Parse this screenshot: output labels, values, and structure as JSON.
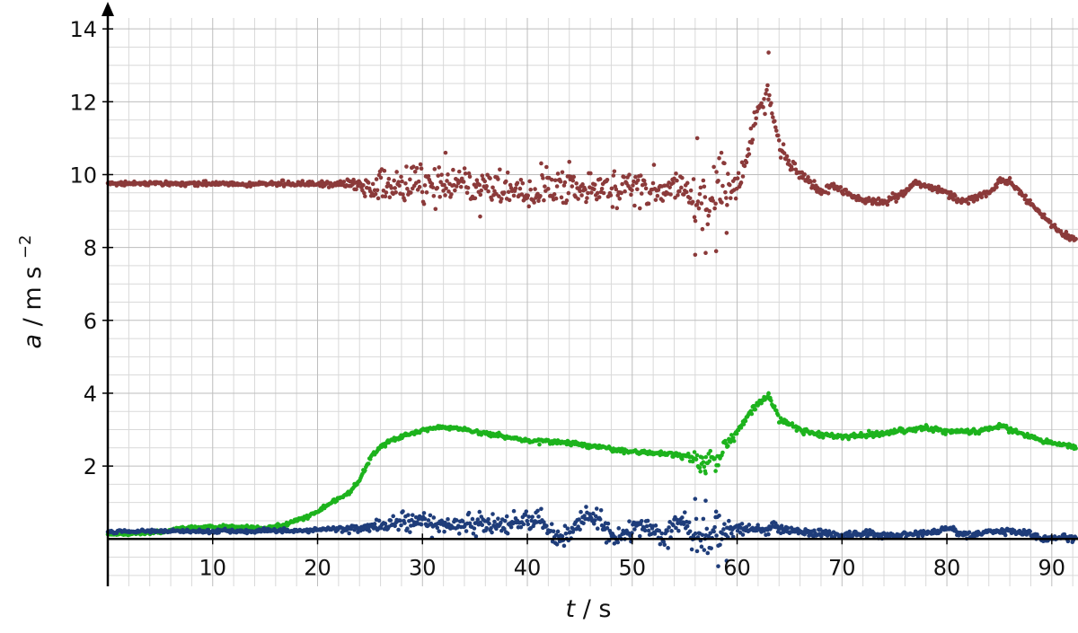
{
  "chart_data": {
    "type": "scatter",
    "title": "",
    "xlabel": {
      "symbol": "t",
      "unit": "s"
    },
    "ylabel": {
      "symbol": "a",
      "unit": "m s",
      "unit_exponent": "−2"
    },
    "xlim": [
      0,
      92.5
    ],
    "ylim": [
      -1.3,
      14.3
    ],
    "x_ticks": [
      10,
      20,
      30,
      40,
      50,
      60,
      70,
      80,
      90
    ],
    "y_ticks": [
      2,
      4,
      6,
      8,
      10,
      12,
      14
    ],
    "x_tick_labels": [
      "10",
      "20",
      "30",
      "40",
      "50",
      "60",
      "70",
      "80",
      "90"
    ],
    "y_tick_labels": [
      "2",
      "4",
      "6",
      "8",
      "10",
      "12",
      "14"
    ],
    "grid": true,
    "grid_minor_step": {
      "x": 2,
      "y": 0.5
    },
    "legend": "none",
    "series": [
      {
        "color": "#8b3a3a",
        "points": [
          [
            0,
            9.75
          ],
          [
            5,
            9.75
          ],
          [
            10,
            9.75
          ],
          [
            15,
            9.75
          ],
          [
            20,
            9.75
          ],
          [
            22,
            9.74
          ],
          [
            24,
            9.72
          ],
          [
            26,
            9.7
          ],
          [
            28,
            9.65
          ],
          [
            30,
            9.7
          ],
          [
            32,
            9.7
          ],
          [
            34,
            9.65
          ],
          [
            36,
            9.6
          ],
          [
            38,
            9.65
          ],
          [
            40,
            9.65
          ],
          [
            42,
            9.6
          ],
          [
            44,
            9.65
          ],
          [
            46,
            9.6
          ],
          [
            48,
            9.6
          ],
          [
            50,
            9.6
          ],
          [
            52,
            9.6
          ],
          [
            54,
            9.6
          ],
          [
            55,
            9.55
          ],
          [
            56,
            9.4
          ],
          [
            57,
            9.3
          ],
          [
            58,
            9.5
          ],
          [
            59,
            9.6
          ],
          [
            60,
            9.7
          ],
          [
            61,
            10.6
          ],
          [
            62,
            11.8
          ],
          [
            63,
            12.3
          ],
          [
            64,
            10.8
          ],
          [
            65,
            10.3
          ],
          [
            66,
            10.0
          ],
          [
            67,
            9.8
          ],
          [
            68,
            9.5
          ],
          [
            69,
            9.7
          ],
          [
            70,
            9.6
          ],
          [
            71,
            9.4
          ],
          [
            72,
            9.3
          ],
          [
            74,
            9.25
          ],
          [
            76,
            9.5
          ],
          [
            77,
            9.8
          ],
          [
            78,
            9.7
          ],
          [
            80,
            9.5
          ],
          [
            81,
            9.3
          ],
          [
            82,
            9.3
          ],
          [
            84,
            9.5
          ],
          [
            85,
            9.85
          ],
          [
            86,
            9.8
          ],
          [
            87,
            9.5
          ],
          [
            88,
            9.2
          ],
          [
            90,
            8.6
          ],
          [
            91,
            8.4
          ],
          [
            92.3,
            8.2
          ]
        ],
        "noise": [
          [
            0,
            0.04
          ],
          [
            22,
            0.05
          ],
          [
            25,
            0.22
          ],
          [
            27,
            0.35
          ],
          [
            55,
            0.35
          ],
          [
            56,
            0.55
          ],
          [
            58,
            0.55
          ],
          [
            60,
            0.35
          ],
          [
            61,
            0.3
          ],
          [
            64,
            0.15
          ],
          [
            66,
            0.08
          ],
          [
            92.3,
            0.06
          ]
        ],
        "outliers": [
          [
            32.2,
            10.6
          ],
          [
            35.5,
            8.85
          ],
          [
            44,
            10.35
          ],
          [
            56,
            7.8
          ],
          [
            56.2,
            11.0
          ],
          [
            57,
            7.85
          ],
          [
            58,
            7.9
          ],
          [
            58.5,
            10.6
          ],
          [
            59,
            8.4
          ],
          [
            63,
            13.35
          ]
        ]
      },
      {
        "color": "#1db31d",
        "points": [
          [
            0,
            0.12
          ],
          [
            5,
            0.18
          ],
          [
            7,
            0.3
          ],
          [
            12,
            0.33
          ],
          [
            15,
            0.3
          ],
          [
            17,
            0.4
          ],
          [
            19,
            0.6
          ],
          [
            21,
            0.95
          ],
          [
            23,
            1.25
          ],
          [
            24,
            1.6
          ],
          [
            25,
            2.2
          ],
          [
            26,
            2.55
          ],
          [
            27,
            2.7
          ],
          [
            29,
            2.9
          ],
          [
            31,
            3.05
          ],
          [
            33,
            3.05
          ],
          [
            35,
            2.95
          ],
          [
            37,
            2.85
          ],
          [
            40,
            2.7
          ],
          [
            43,
            2.65
          ],
          [
            46,
            2.55
          ],
          [
            50,
            2.4
          ],
          [
            54,
            2.3
          ],
          [
            55,
            2.28
          ],
          [
            56,
            2.2
          ],
          [
            57,
            2.1
          ],
          [
            58,
            2.2
          ],
          [
            59,
            2.6
          ],
          [
            60,
            2.9
          ],
          [
            61,
            3.4
          ],
          [
            62,
            3.7
          ],
          [
            63,
            3.95
          ],
          [
            64,
            3.3
          ],
          [
            66,
            3.0
          ],
          [
            68,
            2.85
          ],
          [
            70,
            2.8
          ],
          [
            74,
            2.9
          ],
          [
            78,
            3.05
          ],
          [
            80,
            2.95
          ],
          [
            83,
            2.95
          ],
          [
            85,
            3.1
          ],
          [
            87,
            2.9
          ],
          [
            89,
            2.7
          ],
          [
            92.3,
            2.52
          ]
        ],
        "noise": [
          [
            0,
            0.03
          ],
          [
            55,
            0.05
          ],
          [
            56,
            0.2
          ],
          [
            58,
            0.2
          ],
          [
            60,
            0.06
          ],
          [
            92.3,
            0.04
          ]
        ],
        "outliers": [
          [
            56.5,
            1.85
          ],
          [
            57,
            1.8
          ],
          [
            63,
            4.0
          ]
        ]
      },
      {
        "color": "#1f3d7a",
        "points": [
          [
            0,
            0.2
          ],
          [
            10,
            0.22
          ],
          [
            18,
            0.22
          ],
          [
            20,
            0.25
          ],
          [
            22,
            0.27
          ],
          [
            24,
            0.3
          ],
          [
            26,
            0.35
          ],
          [
            28,
            0.45
          ],
          [
            30,
            0.45
          ],
          [
            32,
            0.35
          ],
          [
            34,
            0.4
          ],
          [
            36,
            0.38
          ],
          [
            38,
            0.45
          ],
          [
            40,
            0.5
          ],
          [
            41,
            0.55
          ],
          [
            42,
            0.3
          ],
          [
            43,
            -0.05
          ],
          [
            44,
            0.2
          ],
          [
            45,
            0.5
          ],
          [
            46,
            0.75
          ],
          [
            47,
            0.45
          ],
          [
            48,
            0.1
          ],
          [
            49,
            -0.05
          ],
          [
            50,
            0.3
          ],
          [
            51,
            0.45
          ],
          [
            52,
            0.2
          ],
          [
            53,
            0.0
          ],
          [
            54,
            0.4
          ],
          [
            55,
            0.55
          ],
          [
            56,
            0.2
          ],
          [
            57,
            0.05
          ],
          [
            58,
            0.2
          ],
          [
            60,
            0.3
          ],
          [
            62,
            0.25
          ],
          [
            64,
            0.3
          ],
          [
            66,
            0.2
          ],
          [
            68,
            0.15
          ],
          [
            70,
            0.1
          ],
          [
            72,
            0.15
          ],
          [
            75,
            0.1
          ],
          [
            78,
            0.15
          ],
          [
            80,
            0.3
          ],
          [
            82,
            0.1
          ],
          [
            84,
            0.2
          ],
          [
            86,
            0.2
          ],
          [
            88,
            0.15
          ],
          [
            89,
            0.0
          ],
          [
            90,
            0.0
          ],
          [
            91,
            0.05
          ],
          [
            92.3,
            0.0
          ]
        ],
        "noise": [
          [
            0,
            0.03
          ],
          [
            22,
            0.04
          ],
          [
            25,
            0.12
          ],
          [
            27,
            0.2
          ],
          [
            55,
            0.22
          ],
          [
            56,
            0.4
          ],
          [
            58,
            0.4
          ],
          [
            60,
            0.15
          ],
          [
            66,
            0.07
          ],
          [
            92.3,
            0.06
          ]
        ],
        "outliers": [
          [
            56,
            1.1
          ],
          [
            57,
            1.05
          ],
          [
            58,
            0.75
          ],
          [
            58.2,
            -0.75
          ],
          [
            59,
            -0.6
          ]
        ]
      }
    ]
  }
}
